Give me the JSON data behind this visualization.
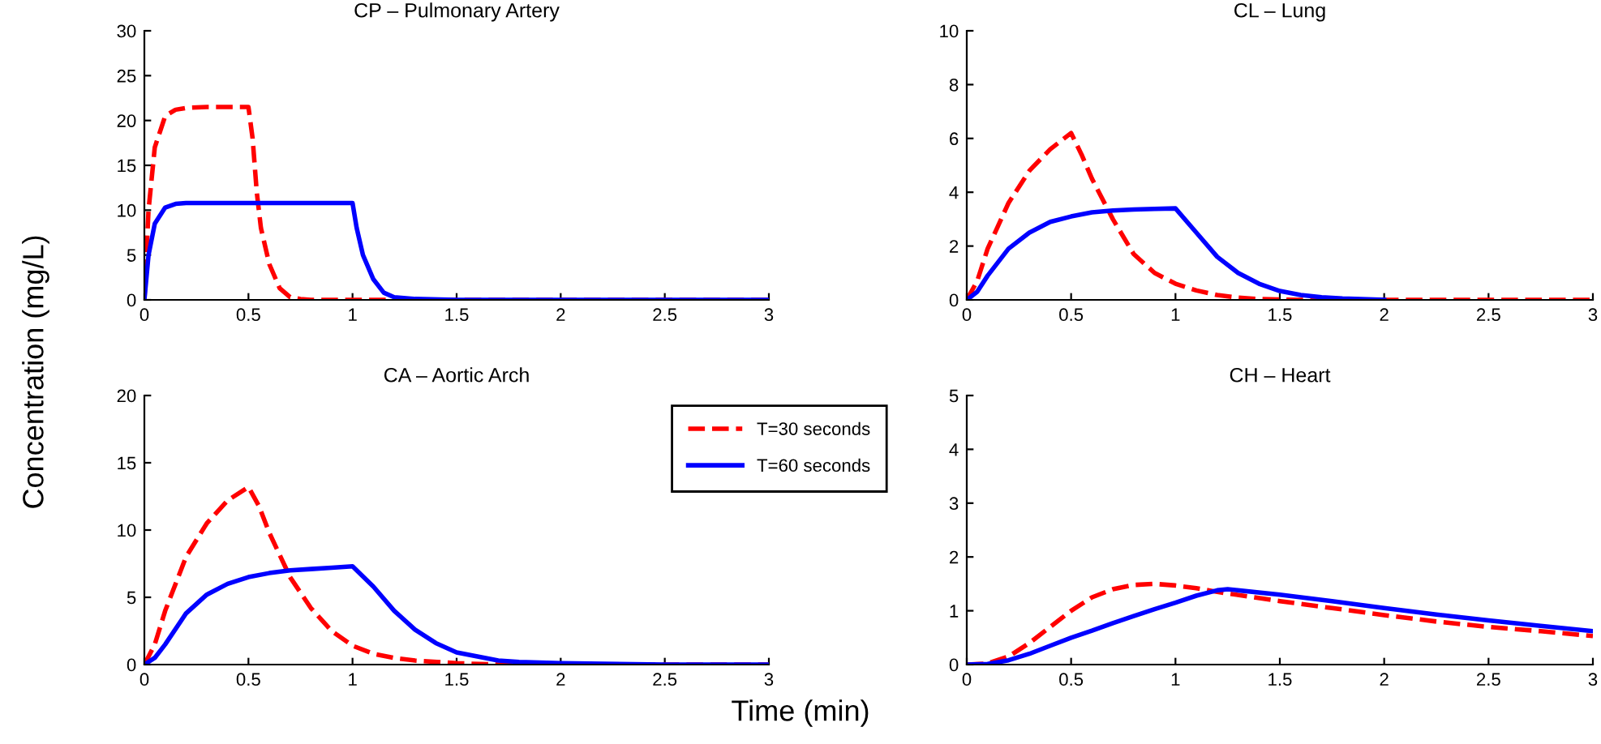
{
  "chart_data": [
    {
      "type": "line",
      "title": "CP – Pulmonary Artery",
      "ylabel": "Concentration (mg/L)",
      "xlim": [
        0,
        3
      ],
      "xticks": [
        0,
        0.5,
        1,
        1.5,
        2,
        2.5,
        3
      ],
      "ylim": [
        0,
        30
      ],
      "yticks": [
        0,
        5,
        10,
        15,
        20,
        25,
        30
      ],
      "grid": false,
      "legend": "bottom right",
      "series": [
        {
          "name": "T=30 seconds",
          "color": "#ff0000",
          "line_style": "dashed",
          "x": [
            0,
            0.02,
            0.05,
            0.1,
            0.15,
            0.2,
            0.3,
            0.5,
            0.52,
            0.54,
            0.56,
            0.6,
            0.65,
            0.7,
            0.75,
            0.8,
            3
          ],
          "values": [
            0,
            10,
            17,
            20.5,
            21.2,
            21.4,
            21.5,
            21.5,
            18,
            12,
            8,
            4,
            1.3,
            0.3,
            0.1,
            0,
            0
          ]
        },
        {
          "name": "T=60 seconds",
          "color": "#0000ff",
          "line_style": "solid",
          "x": [
            0,
            0.02,
            0.05,
            0.1,
            0.15,
            0.2,
            1.0,
            1.02,
            1.05,
            1.1,
            1.15,
            1.2,
            1.3,
            1.5,
            3
          ],
          "values": [
            0,
            5,
            8.5,
            10.3,
            10.7,
            10.8,
            10.8,
            8,
            5,
            2.3,
            0.8,
            0.3,
            0.1,
            0,
            0
          ]
        }
      ]
    },
    {
      "type": "line",
      "title": "CL – Lung",
      "xlim": [
        0,
        3
      ],
      "xticks": [
        0,
        0.5,
        1,
        1.5,
        2,
        2.5,
        3
      ],
      "ylim": [
        0,
        10
      ],
      "yticks": [
        0,
        2,
        4,
        6,
        8,
        10
      ],
      "grid": false,
      "series": [
        {
          "color": "#ff0000",
          "line_style": "dashed",
          "x": [
            0,
            0.05,
            0.1,
            0.2,
            0.3,
            0.4,
            0.5,
            0.55,
            0.6,
            0.7,
            0.8,
            0.9,
            1.0,
            1.1,
            1.2,
            1.3,
            1.4,
            1.6,
            3
          ],
          "values": [
            0,
            0.7,
            1.9,
            3.6,
            4.8,
            5.6,
            6.2,
            5.4,
            4.5,
            3.0,
            1.7,
            1.0,
            0.6,
            0.35,
            0.18,
            0.08,
            0.03,
            0,
            0
          ]
        },
        {
          "color": "#0000ff",
          "line_style": "solid",
          "x": [
            0,
            0.05,
            0.1,
            0.2,
            0.3,
            0.4,
            0.5,
            0.6,
            0.7,
            0.8,
            0.9,
            1.0,
            1.1,
            1.2,
            1.3,
            1.4,
            1.5,
            1.6,
            1.7,
            1.8,
            2.0
          ],
          "values": [
            0,
            0.3,
            0.9,
            1.9,
            2.5,
            2.9,
            3.1,
            3.25,
            3.32,
            3.36,
            3.38,
            3.4,
            2.5,
            1.6,
            1.0,
            0.6,
            0.33,
            0.18,
            0.1,
            0.05,
            0
          ]
        }
      ]
    },
    {
      "type": "line",
      "title": "CA – Aortic Arch",
      "xlabel": "Time (min)",
      "xlim": [
        0,
        3
      ],
      "xticks": [
        0,
        0.5,
        1,
        1.5,
        2,
        2.5,
        3
      ],
      "ylim": [
        0,
        20
      ],
      "yticks": [
        0,
        5,
        10,
        15,
        20
      ],
      "grid": false,
      "series": [
        {
          "color": "#ff0000",
          "line_style": "dashed",
          "x": [
            0,
            0.05,
            0.1,
            0.2,
            0.3,
            0.4,
            0.5,
            0.55,
            0.6,
            0.7,
            0.8,
            0.9,
            1.0,
            1.1,
            1.2,
            1.3,
            1.5,
            1.7,
            2,
            3
          ],
          "values": [
            0,
            1.5,
            4,
            8,
            10.5,
            12.2,
            13.2,
            11.8,
            9.8,
            6.5,
            4.2,
            2.5,
            1.4,
            0.8,
            0.5,
            0.3,
            0.1,
            0,
            0,
            0
          ]
        },
        {
          "color": "#0000ff",
          "line_style": "solid",
          "x": [
            0,
            0.05,
            0.1,
            0.2,
            0.3,
            0.4,
            0.5,
            0.6,
            0.7,
            0.8,
            0.9,
            1.0,
            1.1,
            1.2,
            1.3,
            1.4,
            1.5,
            1.6,
            1.7,
            1.8,
            2.0,
            2.5,
            3
          ],
          "values": [
            0,
            0.5,
            1.5,
            3.8,
            5.2,
            6.0,
            6.5,
            6.8,
            7.0,
            7.1,
            7.2,
            7.3,
            5.8,
            4.0,
            2.6,
            1.6,
            0.9,
            0.6,
            0.3,
            0.2,
            0.1,
            0,
            0
          ]
        }
      ]
    },
    {
      "type": "line",
      "title": "CH – Heart",
      "xlim": [
        0,
        3
      ],
      "xticks": [
        0,
        0.5,
        1,
        1.5,
        2,
        2.5,
        3
      ],
      "ylim": [
        0,
        5
      ],
      "yticks": [
        0,
        1,
        2,
        3,
        4,
        5
      ],
      "grid": false,
      "series": [
        {
          "color": "#ff0000",
          "line_style": "dashed",
          "x": [
            0,
            0.1,
            0.2,
            0.3,
            0.4,
            0.5,
            0.6,
            0.7,
            0.8,
            0.9,
            1.0,
            1.1,
            1.2,
            1.5,
            1.75,
            2.0,
            2.25,
            2.5,
            2.75,
            3
          ],
          "values": [
            0,
            0.02,
            0.15,
            0.4,
            0.7,
            1.0,
            1.25,
            1.4,
            1.48,
            1.5,
            1.47,
            1.42,
            1.35,
            1.18,
            1.05,
            0.92,
            0.8,
            0.7,
            0.62,
            0.53
          ]
        },
        {
          "color": "#0000ff",
          "line_style": "solid",
          "x": [
            0,
            0.1,
            0.2,
            0.3,
            0.4,
            0.5,
            0.6,
            0.7,
            0.8,
            0.9,
            1.0,
            1.1,
            1.2,
            1.25,
            1.5,
            1.75,
            2.0,
            2.25,
            2.5,
            2.75,
            3
          ],
          "values": [
            0,
            0.01,
            0.08,
            0.2,
            0.35,
            0.5,
            0.63,
            0.77,
            0.9,
            1.03,
            1.15,
            1.28,
            1.38,
            1.4,
            1.3,
            1.18,
            1.05,
            0.93,
            0.82,
            0.72,
            0.62
          ]
        }
      ]
    }
  ]
}
